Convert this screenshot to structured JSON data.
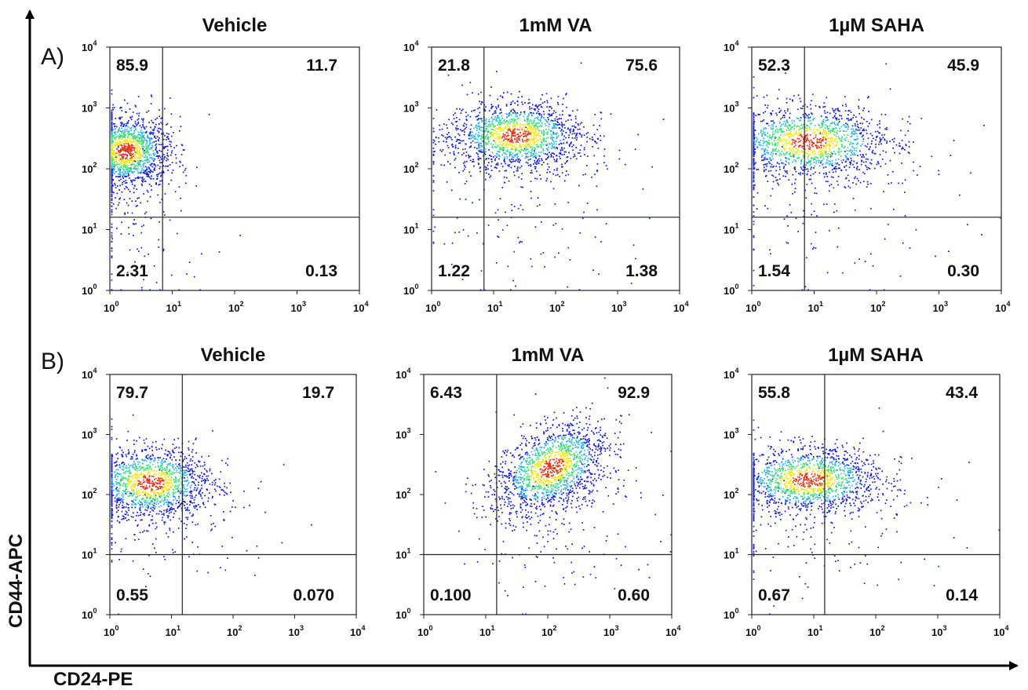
{
  "chart_data": {
    "type": "scatter",
    "description_style": "flow-cytometry density dot plots, quadrant gates",
    "x_axis_label": "CD24-PE",
    "y_axis_label": "CD44-APC",
    "x_scale": "log",
    "y_scale": "log",
    "xlim": [
      1,
      10000
    ],
    "ylim": [
      1,
      10000
    ],
    "tick_labels": [
      "10^0",
      "10^1",
      "10^2",
      "10^3",
      "10^4"
    ],
    "density_colors": [
      "#0a16e0",
      "#2bb4e8",
      "#38e07a",
      "#f0e820",
      "#e83012"
    ],
    "rows": [
      {
        "label": "A)",
        "panels": [
          {
            "title": "Vehicle",
            "gate_x": 7,
            "gate_y": 16,
            "quadrants": {
              "upper_left": "85.9",
              "upper_right": "11.7",
              "lower_left": "2.31",
              "lower_right": "0.13"
            }
          },
          {
            "title": "1mM VA",
            "gate_x": 7,
            "gate_y": 16,
            "quadrants": {
              "upper_left": "21.8",
              "upper_right": "75.6",
              "lower_left": "1.22",
              "lower_right": "1.38"
            }
          },
          {
            "title": "1µM SAHA",
            "gate_x": 7,
            "gate_y": 16,
            "quadrants": {
              "upper_left": "52.3",
              "upper_right": "45.9",
              "lower_left": "1.54",
              "lower_right": "0.30"
            }
          }
        ]
      },
      {
        "label": "B)",
        "panels": [
          {
            "title": "Vehicle",
            "gate_x": 15,
            "gate_y": 10,
            "quadrants": {
              "upper_left": "79.7",
              "upper_right": "19.7",
              "lower_left": "0.55",
              "lower_right": "0.070"
            }
          },
          {
            "title": "1mM VA",
            "gate_x": 15,
            "gate_y": 10,
            "quadrants": {
              "upper_left": "6.43",
              "upper_right": "92.9",
              "lower_left": "0.100",
              "lower_right": "0.60"
            }
          },
          {
            "title": "1µM SAHA",
            "gate_x": 15,
            "gate_y": 10,
            "quadrants": {
              "upper_left": "55.8",
              "upper_right": "43.4",
              "lower_left": "0.67",
              "lower_right": "0.14"
            }
          }
        ]
      }
    ]
  }
}
